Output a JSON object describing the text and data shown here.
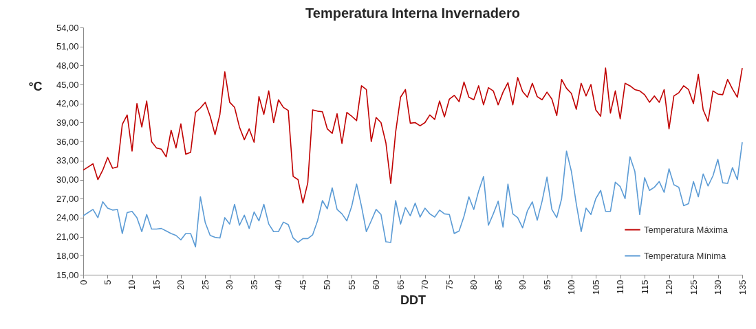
{
  "chart_data": {
    "type": "line",
    "title": "Temperatura Interna Invernadero",
    "xlabel": "DDT",
    "ylabel": "°C",
    "x": [
      0,
      1,
      2,
      3,
      4,
      5,
      6,
      7,
      8,
      9,
      10,
      11,
      12,
      13,
      14,
      15,
      16,
      17,
      18,
      19,
      20,
      21,
      22,
      23,
      24,
      25,
      26,
      27,
      28,
      29,
      30,
      31,
      32,
      33,
      34,
      35,
      36,
      37,
      38,
      39,
      40,
      41,
      42,
      43,
      44,
      45,
      46,
      47,
      48,
      49,
      50,
      51,
      52,
      53,
      54,
      55,
      56,
      57,
      58,
      59,
      60,
      61,
      62,
      63,
      64,
      65,
      66,
      67,
      68,
      69,
      70,
      71,
      72,
      73,
      74,
      75,
      76,
      77,
      78,
      79,
      80,
      81,
      82,
      83,
      84,
      85,
      86,
      87,
      88,
      89,
      90,
      91,
      92,
      93,
      94,
      95,
      96,
      97,
      98,
      99,
      100,
      101,
      102,
      103,
      104,
      105,
      106,
      107,
      108,
      109,
      110,
      111,
      112,
      113,
      114,
      115,
      116,
      117,
      118,
      119,
      120,
      121,
      122,
      123,
      124,
      125,
      126,
      127,
      128,
      129,
      130,
      131,
      132,
      133,
      134,
      135
    ],
    "series": [
      {
        "name": "Temperatura Máxima",
        "color": "#c00000",
        "values": [
          31.5,
          32.0,
          32.5,
          30.0,
          31.5,
          33.5,
          31.8,
          32.0,
          38.7,
          40.2,
          34.5,
          42.0,
          38.3,
          42.4,
          36.0,
          35.0,
          34.8,
          33.6,
          37.8,
          35.0,
          38.8,
          34.0,
          34.3,
          40.6,
          41.3,
          42.2,
          40.0,
          37.1,
          40.3,
          47.0,
          42.2,
          41.4,
          38.3,
          36.3,
          38.0,
          35.9,
          43.1,
          40.3,
          44.0,
          39.0,
          42.6,
          41.4,
          40.9,
          30.5,
          30.0,
          26.3,
          29.5,
          41.0,
          40.8,
          40.7,
          38.0,
          37.3,
          40.4,
          35.7,
          40.6,
          40.0,
          39.3,
          44.8,
          44.2,
          36.0,
          39.8,
          39.0,
          35.8,
          29.4,
          37.5,
          43.0,
          44.2,
          38.9,
          39.0,
          38.5,
          39.0,
          40.2,
          39.5,
          42.4,
          39.9,
          42.7,
          43.3,
          42.3,
          45.4,
          43.0,
          42.6,
          44.8,
          41.8,
          44.5,
          44.0,
          41.8,
          43.8,
          45.3,
          41.8,
          46.1,
          43.9,
          43.0,
          45.2,
          43.1,
          42.6,
          43.8,
          42.7,
          40.1,
          45.8,
          44.4,
          43.6,
          41.1,
          45.2,
          43.2,
          45.0,
          41.0,
          40.0,
          47.6,
          40.5,
          44.0,
          39.6,
          45.2,
          44.8,
          44.2,
          44.0,
          43.4,
          42.2,
          43.2,
          42.2,
          44.2,
          38.0,
          43.2,
          43.7,
          44.8,
          44.2,
          42.0,
          46.6,
          41.0,
          39.2,
          44.0,
          43.5,
          43.4,
          45.8,
          44.3,
          43.0,
          47.6
        ]
      },
      {
        "name": "Temperatura Mínima",
        "color": "#5b9bd5",
        "values": [
          24.3,
          24.8,
          25.3,
          24.0,
          26.5,
          25.5,
          25.2,
          25.3,
          21.5,
          24.8,
          25.0,
          24.0,
          21.8,
          24.5,
          22.2,
          22.2,
          22.3,
          21.9,
          21.5,
          21.2,
          20.5,
          21.5,
          21.5,
          19.4,
          27.3,
          23.2,
          21.2,
          20.9,
          20.8,
          24.0,
          23.0,
          26.1,
          22.8,
          24.4,
          22.3,
          24.9,
          23.5,
          26.1,
          23.0,
          21.8,
          21.8,
          23.3,
          22.9,
          20.8,
          20.1,
          20.7,
          20.7,
          21.3,
          23.5,
          26.7,
          25.4,
          28.7,
          25.3,
          24.6,
          23.5,
          25.8,
          29.3,
          25.8,
          21.8,
          23.5,
          25.3,
          24.5,
          20.2,
          20.1,
          26.7,
          23.0,
          25.6,
          24.3,
          26.3,
          24.1,
          25.5,
          24.6,
          24.1,
          25.2,
          24.6,
          24.5,
          21.5,
          21.9,
          24.2,
          27.3,
          25.3,
          28.2,
          30.5,
          22.8,
          24.6,
          26.6,
          22.5,
          29.3,
          24.6,
          24.0,
          22.4,
          25.1,
          26.5,
          23.6,
          26.6,
          30.4,
          25.3,
          24.0,
          27.0,
          34.5,
          31.3,
          26.2,
          21.8,
          25.5,
          24.5,
          27.0,
          28.3,
          25.0,
          25.0,
          29.6,
          28.9,
          27.0,
          33.6,
          31.3,
          24.5,
          30.3,
          28.3,
          28.8,
          29.7,
          28.0,
          31.7,
          29.2,
          28.8,
          25.9,
          26.2,
          29.7,
          27.3,
          30.9,
          29.0,
          30.6,
          33.2,
          29.5,
          29.4,
          31.9,
          30.0,
          35.9
        ]
      }
    ],
    "xlim": [
      0,
      135
    ],
    "xticks": [
      0,
      5,
      10,
      15,
      20,
      25,
      30,
      35,
      40,
      45,
      50,
      55,
      60,
      65,
      70,
      75,
      80,
      85,
      90,
      95,
      100,
      105,
      110,
      115,
      120,
      125,
      130,
      135
    ],
    "ylim": [
      15,
      54
    ],
    "yticks": [
      {
        "value": 15,
        "label": "15,00"
      },
      {
        "value": 18,
        "label": "18,00"
      },
      {
        "value": 21,
        "label": "21,00"
      },
      {
        "value": 24,
        "label": "24,00"
      },
      {
        "value": 27,
        "label": "27,00"
      },
      {
        "value": 30,
        "label": "30,00"
      },
      {
        "value": 33,
        "label": "33,00"
      },
      {
        "value": 36,
        "label": "36,00"
      },
      {
        "value": 39,
        "label": "39,00"
      },
      {
        "value": 42,
        "label": "42,00"
      },
      {
        "value": 45,
        "label": "45,00"
      },
      {
        "value": 48,
        "label": "48,00"
      },
      {
        "value": 51,
        "label": "51,00"
      },
      {
        "value": 54,
        "label": "54,00"
      }
    ],
    "grid": false,
    "legend": "bottom right"
  }
}
